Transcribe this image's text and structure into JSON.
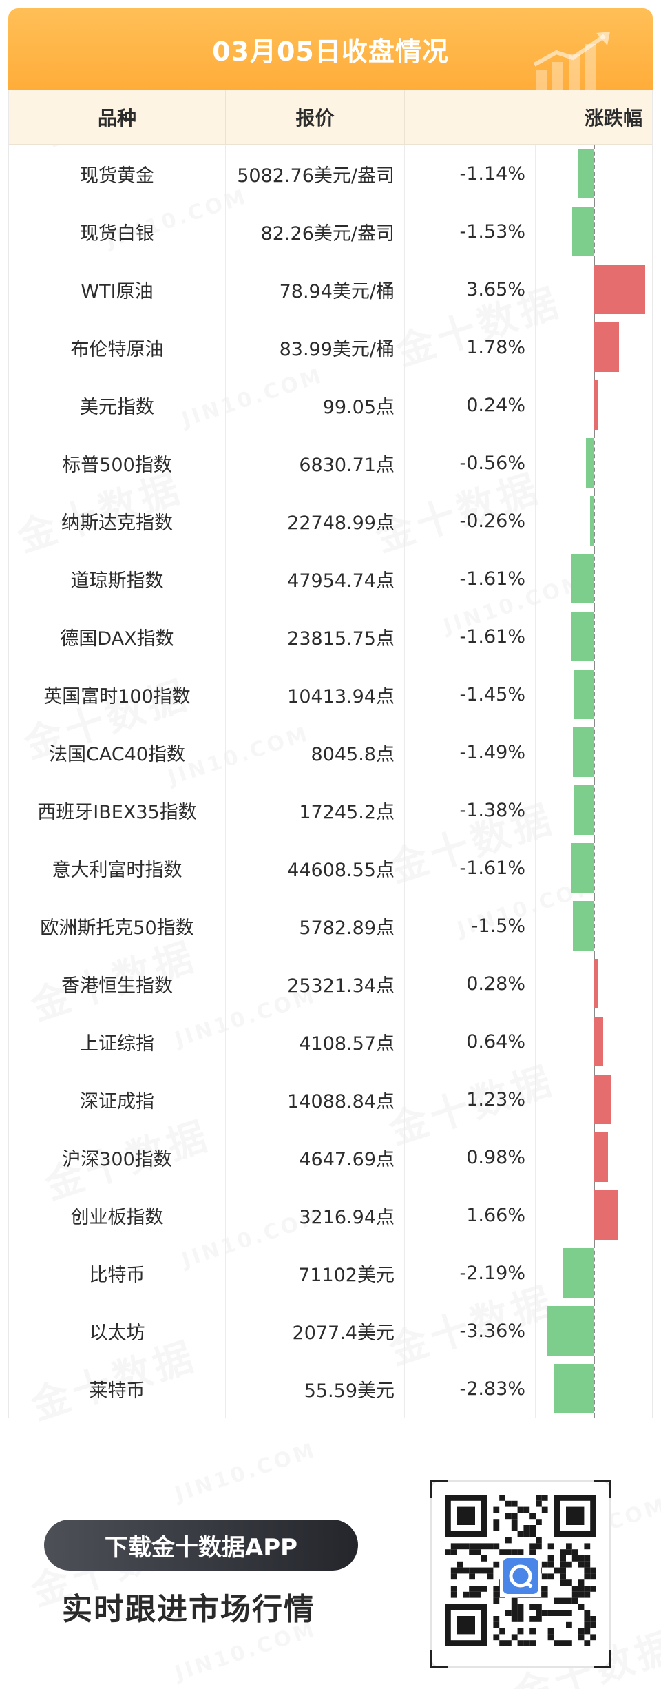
{
  "title": "03月05日收盘情况",
  "columns": {
    "name": "品种",
    "price": "报价",
    "change": "涨跌幅"
  },
  "rows": [
    {
      "name": "现货黄金",
      "price": "5082.76美元/盎司",
      "change": "-1.14%"
    },
    {
      "name": "现货白银",
      "price": "82.26美元/盎司",
      "change": "-1.53%"
    },
    {
      "name": "WTI原油",
      "price": "78.94美元/桶",
      "change": "3.65%"
    },
    {
      "name": "布伦特原油",
      "price": "83.99美元/桶",
      "change": "1.78%"
    },
    {
      "name": "美元指数",
      "price": "99.05点",
      "change": "0.24%"
    },
    {
      "name": "标普500指数",
      "price": "6830.71点",
      "change": "-0.56%"
    },
    {
      "name": "纳斯达克指数",
      "price": "22748.99点",
      "change": "-0.26%"
    },
    {
      "name": "道琼斯指数",
      "price": "47954.74点",
      "change": "-1.61%"
    },
    {
      "name": "德国DAX指数",
      "price": "23815.75点",
      "change": "-1.61%"
    },
    {
      "name": "英国富时100指数",
      "price": "10413.94点",
      "change": "-1.45%"
    },
    {
      "name": "法国CAC40指数",
      "price": "8045.8点",
      "change": "-1.49%"
    },
    {
      "name": "西班牙IBEX35指数",
      "price": "17245.2点",
      "change": "-1.38%"
    },
    {
      "name": "意大利富时指数",
      "price": "44608.55点",
      "change": "-1.61%"
    },
    {
      "name": "欧洲斯托克50指数",
      "price": "5782.89点",
      "change": "-1.5%"
    },
    {
      "name": "香港恒生指数",
      "price": "25321.34点",
      "change": "0.28%"
    },
    {
      "name": "上证综指",
      "price": "4108.57点",
      "change": "0.64%"
    },
    {
      "name": "深证成指",
      "price": "14088.84点",
      "change": "1.23%"
    },
    {
      "name": "沪深300指数",
      "price": "4647.69点",
      "change": "0.98%"
    },
    {
      "name": "创业板指数",
      "price": "3216.94点",
      "change": "1.66%"
    },
    {
      "name": "比特币",
      "price": "71102美元",
      "change": "-2.19%"
    },
    {
      "name": "以太坊",
      "price": "2077.4美元",
      "change": "-3.36%"
    },
    {
      "name": "莱特币",
      "price": "55.59美元",
      "change": "-2.83%"
    }
  ],
  "chart_data": {
    "type": "bar",
    "orientation": "horizontal",
    "categories": [
      "现货黄金",
      "现货白银",
      "WTI原油",
      "布伦特原油",
      "美元指数",
      "标普500指数",
      "纳斯达克指数",
      "道琼斯指数",
      "德国DAX指数",
      "英国富时100指数",
      "法国CAC40指数",
      "西班牙IBEX35指数",
      "意大利富时指数",
      "欧洲斯托克50指数",
      "香港恒生指数",
      "上证综指",
      "深证成指",
      "沪深300指数",
      "创业板指数",
      "比特币",
      "以太坊",
      "莱特币"
    ],
    "values": [
      -1.14,
      -1.53,
      3.65,
      1.78,
      0.24,
      -0.56,
      -0.26,
      -1.61,
      -1.61,
      -1.45,
      -1.49,
      -1.38,
      -1.61,
      -1.5,
      0.28,
      0.64,
      1.23,
      0.98,
      1.66,
      -2.19,
      -3.36,
      -2.83
    ],
    "baseline": 0,
    "colors": {
      "positive": "#e56d6d",
      "negative": "#7dcd8d"
    }
  },
  "promo": {
    "button_label": "下载金十数据APP",
    "tagline": "实时跟进市场行情"
  },
  "watermark": {
    "cn": "金十数据",
    "en": "JIN10.COM"
  },
  "colors": {
    "header": "#ffad3a",
    "header_row": "#fdf4e4",
    "qr_accent": "#4a86e8"
  }
}
